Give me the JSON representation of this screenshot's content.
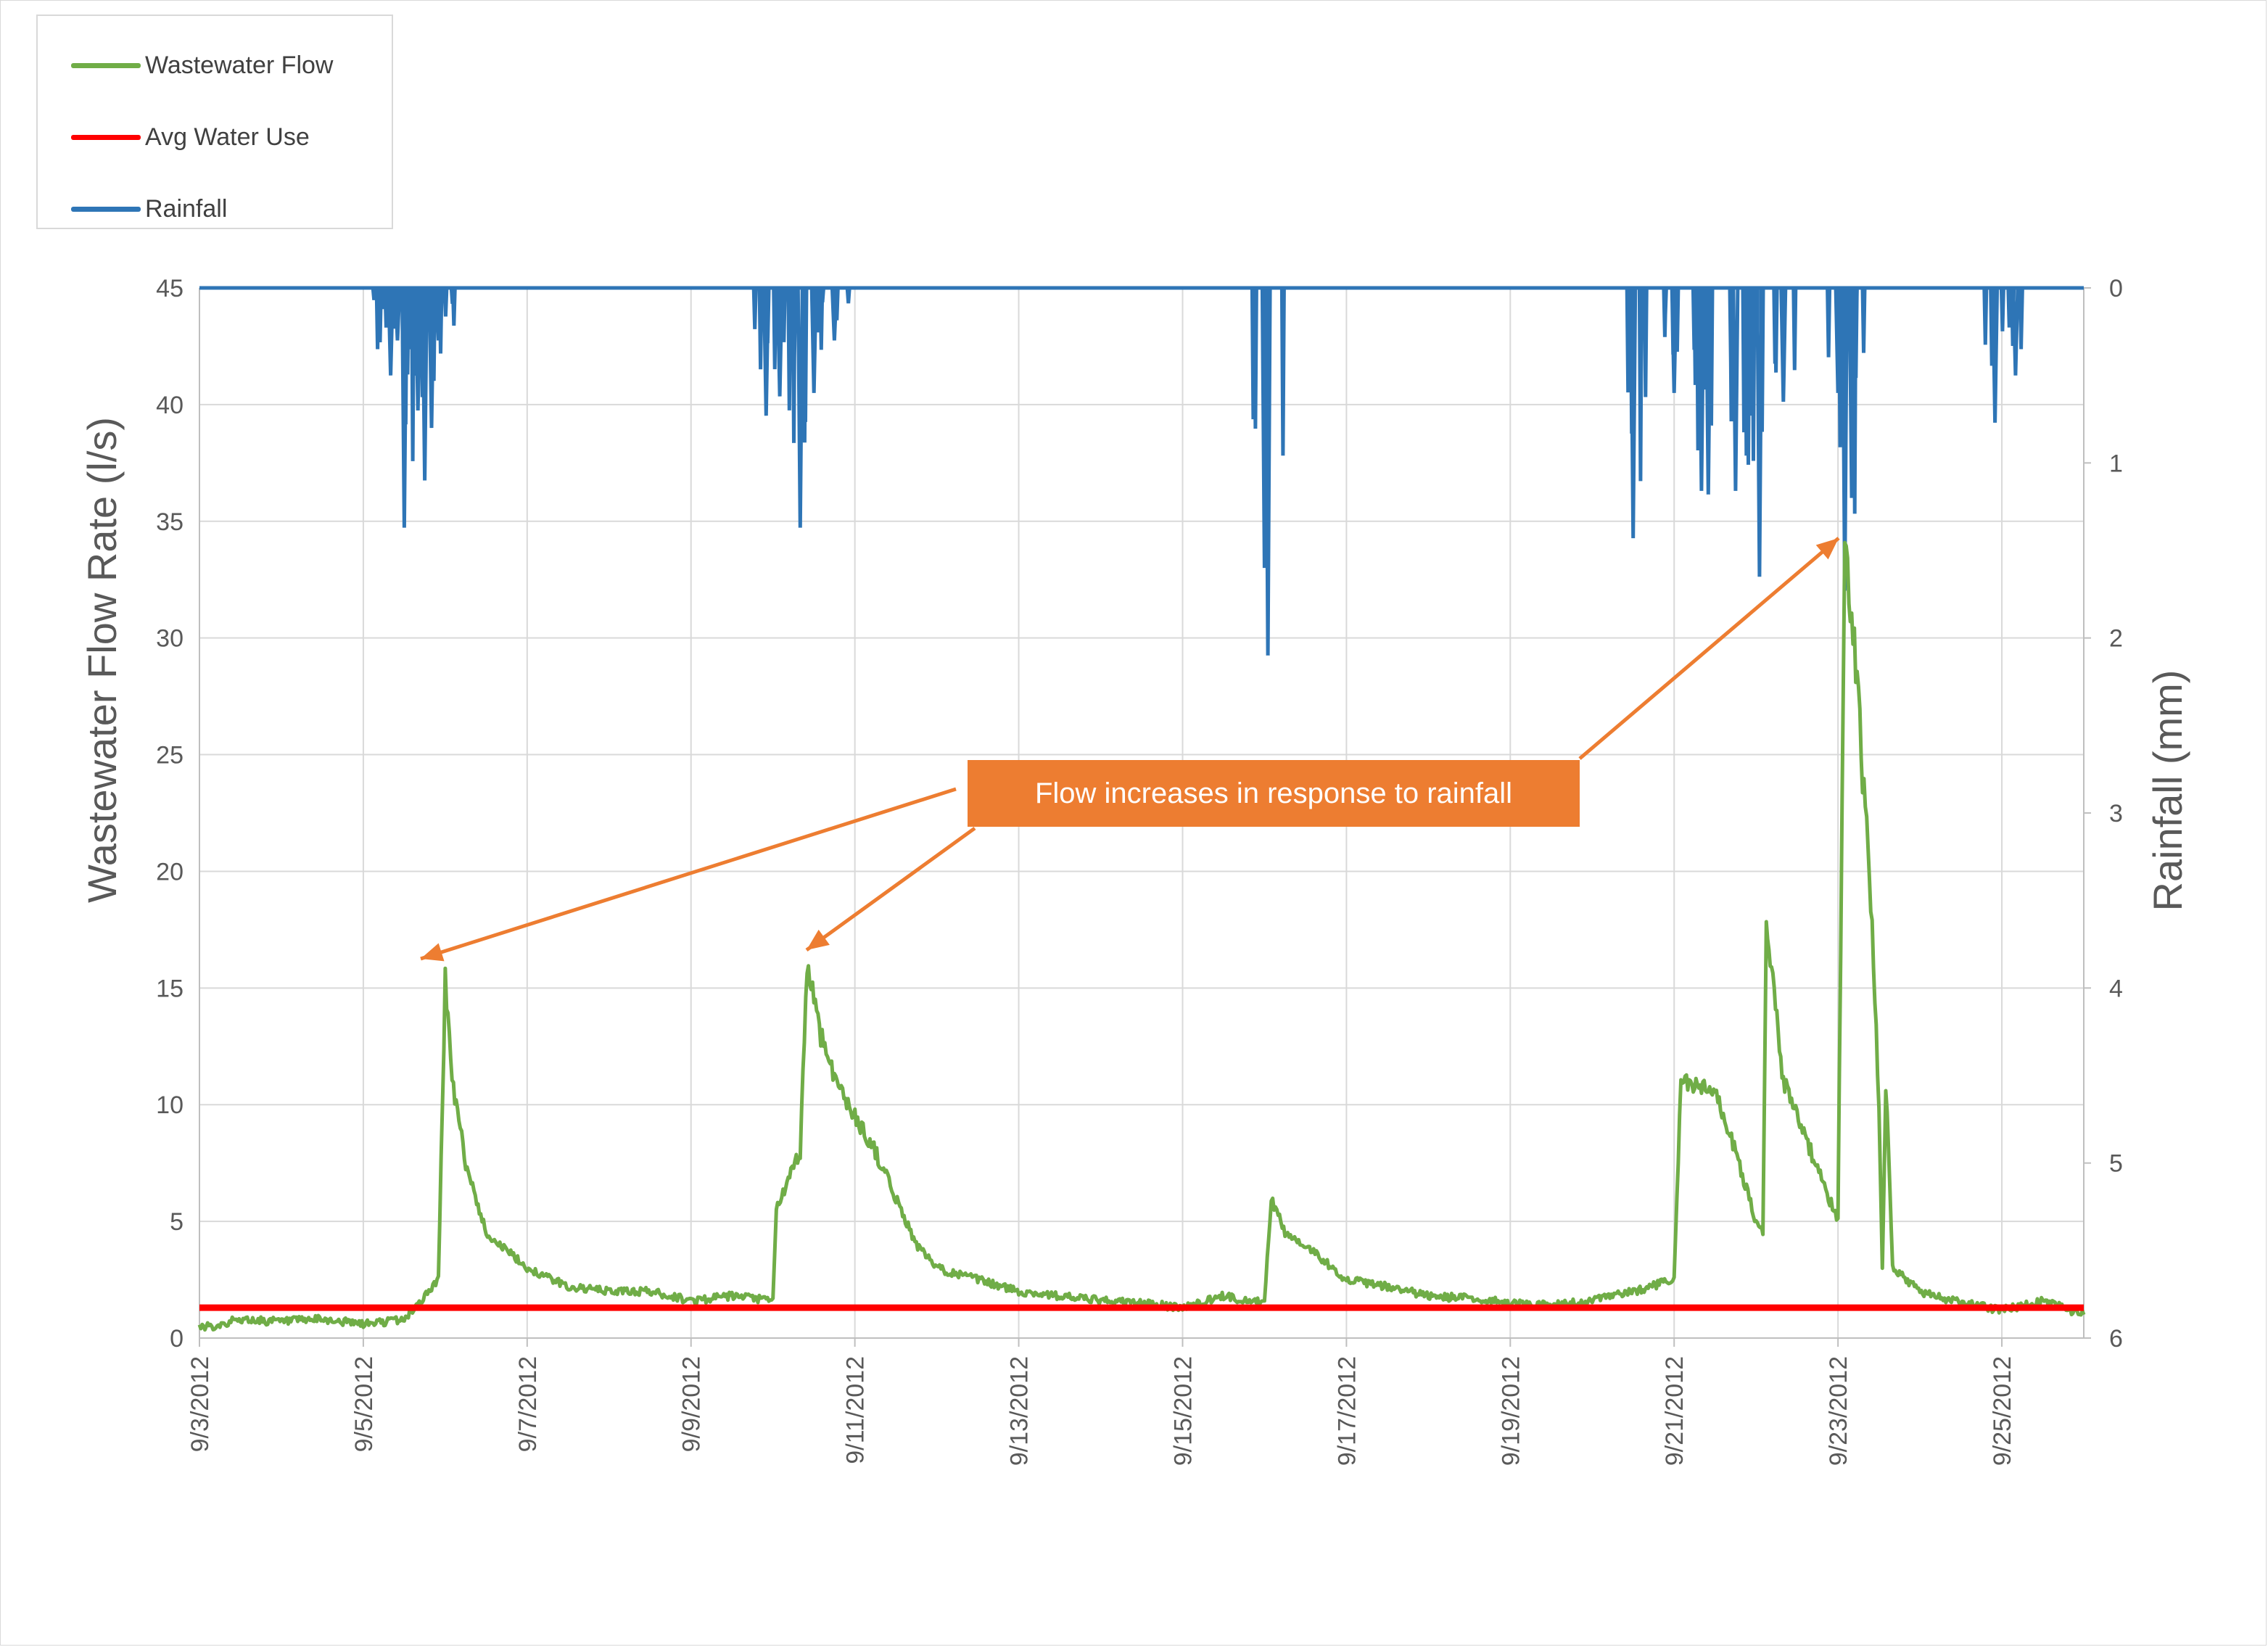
{
  "chart_data": {
    "type": "line",
    "ylabel": "Wastewater Flow Rate (l/s)",
    "y2label": "Rainfall (mm)",
    "ylim": [
      0,
      45
    ],
    "y2lim": [
      0,
      6
    ],
    "y2_reversed": true,
    "xlim": [
      "9/3/2012",
      "9/26/2012"
    ],
    "yticks": [
      "0",
      "5",
      "10",
      "15",
      "20",
      "25",
      "30",
      "35",
      "40",
      "45"
    ],
    "y2ticks": [
      "0",
      "1",
      "2",
      "3",
      "4",
      "5",
      "6"
    ],
    "xticks": [
      "9/3/2012",
      "9/5/2012",
      "9/7/2012",
      "9/9/2012",
      "9/11/2012",
      "9/13/2012",
      "9/15/2012",
      "9/17/2012",
      "9/19/2012",
      "9/21/2012",
      "9/23/2012",
      "9/25/2012"
    ],
    "grid": true,
    "legend_position": "top-left",
    "series": [
      {
        "name": "Wastewater Flow",
        "color": "#70ad47",
        "axis": "left",
        "points": [
          [
            "9/3/2012 00:00",
            0.4
          ],
          [
            "9/3/2012 12:00",
            0.8
          ],
          [
            "9/4/2012 00:00",
            0.7
          ],
          [
            "9/4/2012 12:00",
            0.8
          ],
          [
            "9/5/2012 00:00",
            0.6
          ],
          [
            "9/5/2012 12:00",
            0.8
          ],
          [
            "9/5/2012 18:00",
            1.8
          ],
          [
            "9/5/2012 22:00",
            2.5
          ],
          [
            "9/6/2012 00:00",
            15.4
          ],
          [
            "9/6/2012 02:00",
            11.0
          ],
          [
            "9/6/2012 06:00",
            7.5
          ],
          [
            "9/6/2012 12:00",
            4.5
          ],
          [
            "9/7/2012 00:00",
            3.0
          ],
          [
            "9/7/2012 12:00",
            2.2
          ],
          [
            "9/8/2012 00:00",
            2.0
          ],
          [
            "9/8/2012 12:00",
            2.0
          ],
          [
            "9/9/2012 00:00",
            1.6
          ],
          [
            "9/9/2012 12:00",
            1.8
          ],
          [
            "9/10/2012 00:00",
            1.6
          ],
          [
            "9/10/2012 01:00",
            5.5
          ],
          [
            "9/10/2012 08:00",
            8.0
          ],
          [
            "9/10/2012 10:00",
            16.1
          ],
          [
            "9/10/2012 14:00",
            13.0
          ],
          [
            "9/10/2012 20:00",
            10.5
          ],
          [
            "9/11/2012 00:00",
            9.5
          ],
          [
            "9/11/2012 06:00",
            8.0
          ],
          [
            "9/11/2012 12:00",
            6.0
          ],
          [
            "9/11/2012 18:00",
            4.0
          ],
          [
            "9/12/2012 00:00",
            3.0
          ],
          [
            "9/12/2012 12:00",
            2.5
          ],
          [
            "9/13/2012 00:00",
            2.0
          ],
          [
            "9/13/2012 12:00",
            1.8
          ],
          [
            "9/14/2012 00:00",
            1.6
          ],
          [
            "9/14/2012 12:00",
            1.5
          ],
          [
            "9/15/2012 00:00",
            1.3
          ],
          [
            "9/15/2012 12:00",
            1.8
          ],
          [
            "9/16/2012 00:00",
            1.5
          ],
          [
            "9/16/2012 02:00",
            6.0
          ],
          [
            "9/16/2012 06:00",
            4.5
          ],
          [
            "9/16/2012 12:00",
            4.0
          ],
          [
            "9/17/2012 00:00",
            2.5
          ],
          [
            "9/17/2012 12:00",
            2.2
          ],
          [
            "9/18/2012 00:00",
            1.8
          ],
          [
            "9/18/2012 12:00",
            1.7
          ],
          [
            "9/19/2012 00:00",
            1.5
          ],
          [
            "9/19/2012 12:00",
            1.4
          ],
          [
            "9/20/2012 00:00",
            1.6
          ],
          [
            "9/20/2012 12:00",
            2.0
          ],
          [
            "9/21/2012 00:00",
            2.5
          ],
          [
            "9/21/2012 02:00",
            11.0
          ],
          [
            "9/21/2012 12:00",
            10.5
          ],
          [
            "9/21/2012 18:00",
            8.0
          ],
          [
            "9/22/2012 00:00",
            5.0
          ],
          [
            "9/22/2012 02:00",
            4.5
          ],
          [
            "9/22/2012 03:00",
            18.0
          ],
          [
            "9/22/2012 08:00",
            11.0
          ],
          [
            "9/22/2012 16:00",
            8.0
          ],
          [
            "9/23/2012 00:00",
            5.0
          ],
          [
            "9/23/2012 02:00",
            35.0
          ],
          [
            "9/23/2012 06:00",
            27.0
          ],
          [
            "9/23/2012 10:00",
            18.0
          ],
          [
            "9/23/2012 12:00",
            10.0
          ],
          [
            "9/23/2012 13:00",
            3.0
          ],
          [
            "9/23/2012 14:00",
            11.0
          ],
          [
            "9/23/2012 16:00",
            3.0
          ],
          [
            "9/24/2012 00:00",
            2.0
          ],
          [
            "9/24/2012 12:00",
            1.5
          ],
          [
            "9/25/2012 00:00",
            1.2
          ],
          [
            "9/25/2012 12:00",
            1.6
          ],
          [
            "9/26/2012 00:00",
            1.0
          ]
        ]
      },
      {
        "name": "Avg Water Use",
        "color": "#ff0000",
        "axis": "left",
        "value": 1.3
      },
      {
        "name": "Rainfall",
        "color": "#2e75b6",
        "axis": "right",
        "points": [
          [
            "9/5/2012 05:00",
            0.0
          ],
          [
            "9/5/2012 06:00",
            0.12
          ],
          [
            "9/5/2012 08:00",
            0.5
          ],
          [
            "9/5/2012 10:00",
            0.3
          ],
          [
            "9/5/2012 12:00",
            1.37
          ],
          [
            "9/5/2012 14:00",
            0.35
          ],
          [
            "9/5/2012 16:00",
            0.7
          ],
          [
            "9/5/2012 18:00",
            1.1
          ],
          [
            "9/5/2012 20:00",
            0.8
          ],
          [
            "9/5/2012 22:00",
            0.3
          ],
          [
            "9/9/2012 22:00",
            0.73
          ],
          [
            "9/10/2012 02:00",
            0.62
          ],
          [
            "9/10/2012 06:00",
            0.4
          ],
          [
            "9/10/2012 08:00",
            1.37
          ],
          [
            "9/10/2012 12:00",
            0.6
          ],
          [
            "9/10/2012 18:00",
            0.3
          ],
          [
            "9/16/2012 00:00",
            1.6
          ],
          [
            "9/16/2012 01:00",
            2.1
          ],
          [
            "9/20/2012 12:00",
            1.43
          ],
          [
            "9/21/2012 00:00",
            0.6
          ],
          [
            "9/21/2012 08:00",
            1.16
          ],
          [
            "9/21/2012 10:00",
            1.18
          ],
          [
            "9/21/2012 18:00",
            1.16
          ],
          [
            "9/22/2012 01:00",
            1.65
          ],
          [
            "9/22/2012 08:00",
            0.65
          ],
          [
            "9/23/2012 00:00",
            0.6
          ],
          [
            "9/23/2012 02:00",
            1.73
          ],
          [
            "9/23/2012 04:00",
            1.2
          ],
          [
            "9/24/2012 22:00",
            0.77
          ],
          [
            "9/25/2012 04:00",
            0.5
          ]
        ]
      }
    ],
    "annotation": "Flow increases in response to rainfall"
  },
  "legend": {
    "items": [
      {
        "label": "Wastewater Flow",
        "color": "#70ad47"
      },
      {
        "label": "Avg Water Use",
        "color": "#ff0000"
      },
      {
        "label": "Rainfall",
        "color": "#2e75b6"
      }
    ]
  }
}
